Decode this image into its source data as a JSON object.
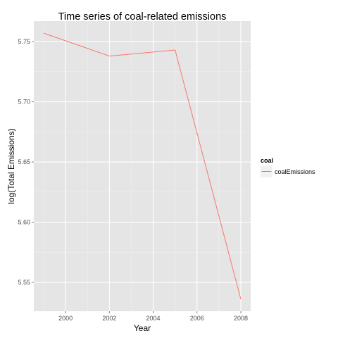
{
  "chart_data": {
    "type": "line",
    "title": "Time series of coal-related emissions",
    "xlabel": "Year",
    "ylabel": "log(Total Emissions)",
    "x": [
      1999,
      2002,
      2005,
      2008
    ],
    "series": [
      {
        "name": "coalEmissions",
        "values": [
          5.757,
          5.738,
          5.743,
          5.536
        ],
        "color": "#f8766d"
      }
    ],
    "xlim": [
      1998.55,
      2008.45
    ],
    "ylim": [
      5.526,
      5.767
    ],
    "xticks": [
      "2000",
      "2002",
      "2004",
      "2006",
      "2008"
    ],
    "yticks": [
      "5.55",
      "5.60",
      "5.65",
      "5.70",
      "5.75"
    ],
    "legend": {
      "title": "coal",
      "placement": "right"
    },
    "grid": true,
    "panel_background": "#e5e5e5"
  }
}
